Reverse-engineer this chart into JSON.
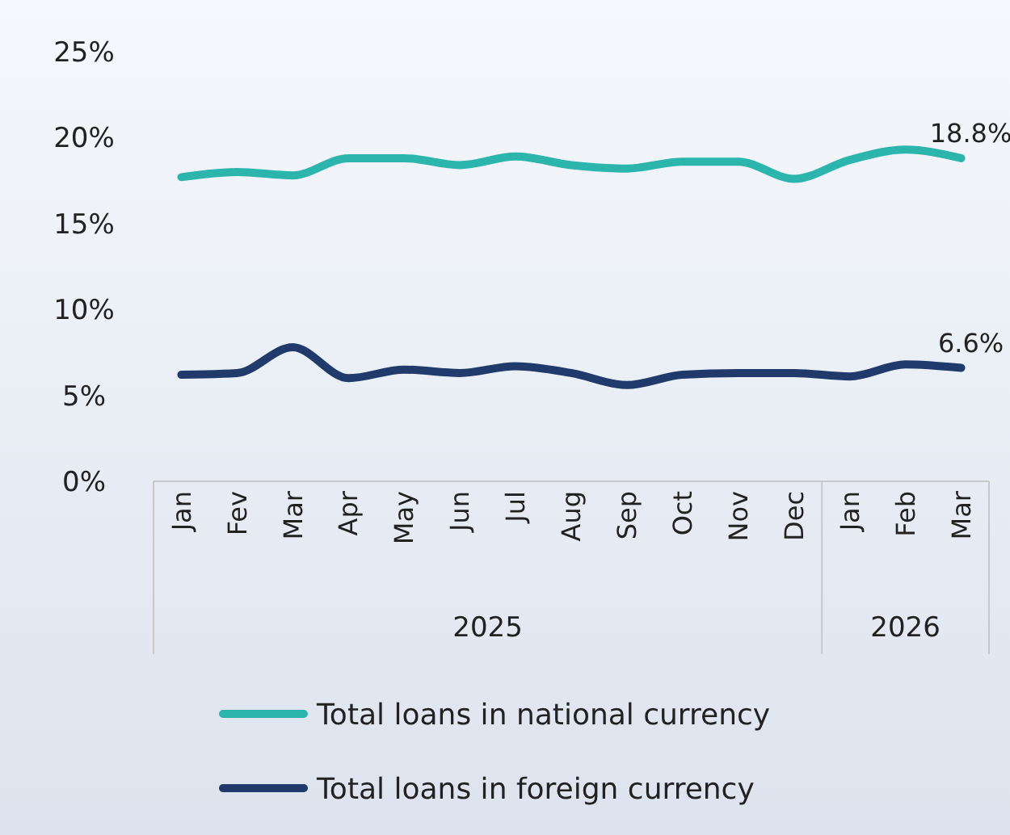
{
  "chart_data": {
    "type": "line",
    "categories": [
      "Jan",
      "Fev",
      "Mar",
      "Apr",
      "May",
      "Jun",
      "Jul",
      "Aug",
      "Sep",
      "Oct",
      "Nov",
      "Dec",
      "Jan",
      "Feb",
      "Mar"
    ],
    "series": [
      {
        "name": "Total loans in national currency",
        "color": "#2cb5ad",
        "values": [
          17.7,
          18.0,
          17.8,
          18.8,
          18.8,
          18.4,
          18.9,
          18.4,
          18.2,
          18.6,
          18.6,
          17.6,
          18.7,
          19.3,
          18.8
        ],
        "value_labels": [
          null,
          null,
          null,
          null,
          null,
          null,
          null,
          null,
          null,
          null,
          null,
          null,
          null,
          null,
          "18.8%"
        ]
      },
      {
        "name": "Total loans in foreign currency",
        "color": "#1f3a6b",
        "values": [
          6.2,
          6.3,
          7.8,
          6.0,
          6.5,
          6.3,
          6.7,
          6.3,
          5.6,
          6.2,
          6.3,
          6.3,
          6.1,
          6.8,
          6.6
        ],
        "value_labels": [
          null,
          null,
          null,
          null,
          null,
          null,
          null,
          null,
          null,
          null,
          null,
          null,
          null,
          null,
          "6.6%"
        ]
      }
    ],
    "ylim": [
      0,
      25
    ],
    "yticks": [
      {
        "value": 0,
        "label": "0%"
      },
      {
        "value": 5,
        "label": "5%"
      },
      {
        "value": 10,
        "label": "10%"
      },
      {
        "value": 15,
        "label": "15%"
      },
      {
        "value": 20,
        "label": "20%"
      },
      {
        "value": 25,
        "label": "25%"
      }
    ],
    "grid": false,
    "legend": "bottom",
    "marker": "none",
    "line_style": "solid",
    "annotations": [
      "2025",
      "2026"
    ]
  }
}
